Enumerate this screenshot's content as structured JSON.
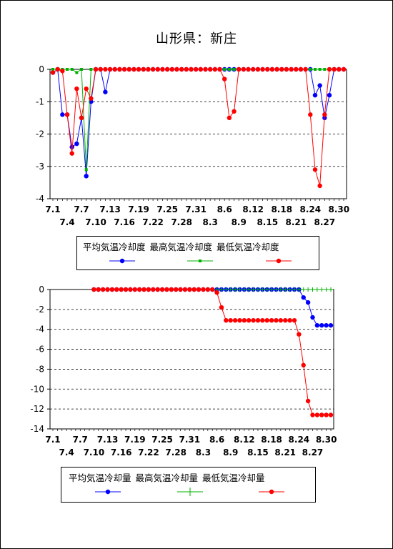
{
  "title": "山形県：新庄",
  "chart_data": [
    {
      "type": "line",
      "ylim": [
        -4,
        0
      ],
      "yticks": [
        0,
        -1,
        -2,
        -3,
        -4
      ],
      "grid": "horizontal dashed",
      "x_labels_row1": [
        "7.1",
        "7.7",
        "7.13",
        "7.19",
        "7.25",
        "7.31",
        "8.6",
        "8.12",
        "8.18",
        "8.24",
        "8.30"
      ],
      "x_labels_row2": [
        "7.4",
        "7.10",
        "7.16",
        "7.22",
        "7.28",
        "8.3",
        "8.9",
        "8.15",
        "8.21",
        "8.27"
      ],
      "legend_position": "bottom",
      "legend_labels": [
        "平均気温冷却度",
        "最高気温冷却度",
        "最低気温冷却度"
      ],
      "x": [
        "7.1",
        "7.2",
        "7.3",
        "7.4",
        "7.5",
        "7.6",
        "7.7",
        "7.8",
        "7.9",
        "7.10",
        "7.11",
        "7.12",
        "7.13",
        "7.14",
        "7.15",
        "7.16",
        "7.17",
        "7.18",
        "7.19",
        "7.20",
        "7.21",
        "7.22",
        "7.23",
        "7.24",
        "7.25",
        "7.26",
        "7.27",
        "7.28",
        "7.29",
        "7.30",
        "7.31",
        "8.1",
        "8.2",
        "8.3",
        "8.4",
        "8.5",
        "8.6",
        "8.7",
        "8.8",
        "8.9",
        "8.10",
        "8.11",
        "8.12",
        "8.13",
        "8.14",
        "8.15",
        "8.16",
        "8.17",
        "8.18",
        "8.19",
        "8.20",
        "8.21",
        "8.22",
        "8.23",
        "8.24",
        "8.25",
        "8.26",
        "8.27",
        "8.28",
        "8.29",
        "8.30",
        "8.31"
      ],
      "series": [
        {
          "color": "#0000ff",
          "marker": "circle",
          "values": [
            -0.1,
            0,
            -1.4,
            -1.4,
            -2.4,
            -2.3,
            -1.5,
            -3.3,
            -1.0,
            0,
            0,
            -0.7,
            0,
            0,
            0,
            0,
            0,
            0,
            0,
            0,
            0,
            0,
            0,
            0,
            0,
            0,
            0,
            0,
            0,
            0,
            0,
            0,
            0,
            0,
            0,
            0,
            0,
            0,
            0,
            0,
            0,
            0,
            0,
            0,
            0,
            0,
            0,
            0,
            0,
            0,
            0,
            0,
            0,
            0,
            0,
            -0.8,
            -0.5,
            -1.5,
            -0.8,
            0,
            0,
            0
          ]
        },
        {
          "color": "#00b000",
          "marker": "square",
          "values": [
            0,
            0,
            0,
            0,
            0,
            -0.1,
            0,
            -3.1,
            0,
            0,
            0,
            0,
            0,
            0,
            0,
            0,
            0,
            0,
            0,
            0,
            0,
            0,
            0,
            0,
            0,
            0,
            0,
            0,
            0,
            0,
            0,
            0,
            0,
            0,
            0,
            0,
            0,
            0,
            0,
            0,
            0,
            0,
            0,
            0,
            0,
            0,
            0,
            0,
            0,
            0,
            0,
            0,
            0,
            0,
            0,
            0,
            0,
            0,
            0,
            0,
            0,
            0
          ]
        },
        {
          "color": "#ff0000",
          "marker": "circle",
          "values": [
            -0.1,
            0,
            -0.05,
            -1.4,
            -2.6,
            -0.6,
            -1.5,
            -0.6,
            -0.9,
            0,
            0,
            0,
            0,
            0,
            0,
            0,
            0,
            0,
            0,
            0,
            0,
            0,
            0,
            0,
            0,
            0,
            0,
            0,
            0,
            0,
            0,
            0,
            0,
            0,
            0,
            0,
            -0.3,
            -1.5,
            -1.3,
            0,
            0,
            0,
            0,
            0,
            0,
            0,
            0,
            0,
            0,
            0,
            0,
            0,
            0,
            0,
            -1.4,
            -3.1,
            -3.6,
            -1.4,
            0,
            0,
            0,
            0
          ]
        }
      ]
    },
    {
      "type": "line",
      "ylim": [
        -14,
        0
      ],
      "yticks": [
        0,
        -2,
        -4,
        -6,
        -8,
        -10,
        -12,
        -14
      ],
      "grid": "horizontal dashed",
      "x_labels_row1": [
        "7.1",
        "7.7",
        "7.13",
        "7.19",
        "7.25",
        "7.31",
        "8.6",
        "8.12",
        "8.18",
        "8.24",
        "8.30"
      ],
      "x_labels_row2": [
        "7.4",
        "7.10",
        "7.16",
        "7.22",
        "7.28",
        "8.3",
        "8.9",
        "8.15",
        "8.21",
        "8.27"
      ],
      "legend_position": "bottom",
      "legend_labels": [
        "平均気温冷却量",
        "最高気温冷却量",
        "最低気温冷却量"
      ],
      "x": [
        "7.10",
        "7.11",
        "7.12",
        "7.13",
        "7.14",
        "7.15",
        "7.16",
        "7.17",
        "7.18",
        "7.19",
        "7.20",
        "7.21",
        "7.22",
        "7.23",
        "7.24",
        "7.25",
        "7.26",
        "7.27",
        "7.28",
        "7.29",
        "7.30",
        "7.31",
        "8.1",
        "8.2",
        "8.3",
        "8.4",
        "8.5",
        "8.6",
        "8.7",
        "8.8",
        "8.9",
        "8.10",
        "8.11",
        "8.12",
        "8.13",
        "8.14",
        "8.15",
        "8.16",
        "8.17",
        "8.18",
        "8.19",
        "8.20",
        "8.21",
        "8.22",
        "8.23",
        "8.24",
        "8.25",
        "8.26",
        "8.27",
        "8.28",
        "8.29",
        "8.30",
        "8.31"
      ],
      "series": [
        {
          "color": "#0000ff",
          "marker": "circle",
          "values": [
            0,
            0,
            0,
            0,
            0,
            0,
            0,
            0,
            0,
            0,
            0,
            0,
            0,
            0,
            0,
            0,
            0,
            0,
            0,
            0,
            0,
            0,
            0,
            0,
            0,
            0,
            0,
            0,
            0,
            0,
            0,
            0,
            0,
            0,
            0,
            0,
            0,
            0,
            0,
            0,
            0,
            0,
            0,
            0,
            0,
            0,
            -0.8,
            -1.3,
            -2.8,
            -3.6,
            -3.6,
            -3.6,
            -3.6
          ]
        },
        {
          "color": "#00b000",
          "marker": "plus",
          "values": [
            0,
            0,
            0,
            0,
            0,
            0,
            0,
            0,
            0,
            0,
            0,
            0,
            0,
            0,
            0,
            0,
            0,
            0,
            0,
            0,
            0,
            0,
            0,
            0,
            0,
            0,
            0,
            0,
            0,
            0,
            0,
            0,
            0,
            0,
            0,
            0,
            0,
            0,
            0,
            0,
            0,
            0,
            0,
            0,
            0,
            0,
            0,
            0,
            0,
            0,
            0,
            0,
            0
          ]
        },
        {
          "color": "#ff0000",
          "marker": "circle",
          "values": [
            0,
            0,
            0,
            0,
            0,
            0,
            0,
            0,
            0,
            0,
            0,
            0,
            0,
            0,
            0,
            0,
            0,
            0,
            0,
            0,
            0,
            0,
            0,
            0,
            0,
            0,
            0,
            -0.3,
            -1.8,
            -3.1,
            -3.1,
            -3.1,
            -3.1,
            -3.1,
            -3.1,
            -3.1,
            -3.1,
            -3.1,
            -3.1,
            -3.1,
            -3.1,
            -3.1,
            -3.1,
            -3.1,
            -3.1,
            -4.5,
            -7.6,
            -11.2,
            -12.6,
            -12.6,
            -12.6,
            -12.6,
            -12.6
          ]
        }
      ]
    }
  ]
}
